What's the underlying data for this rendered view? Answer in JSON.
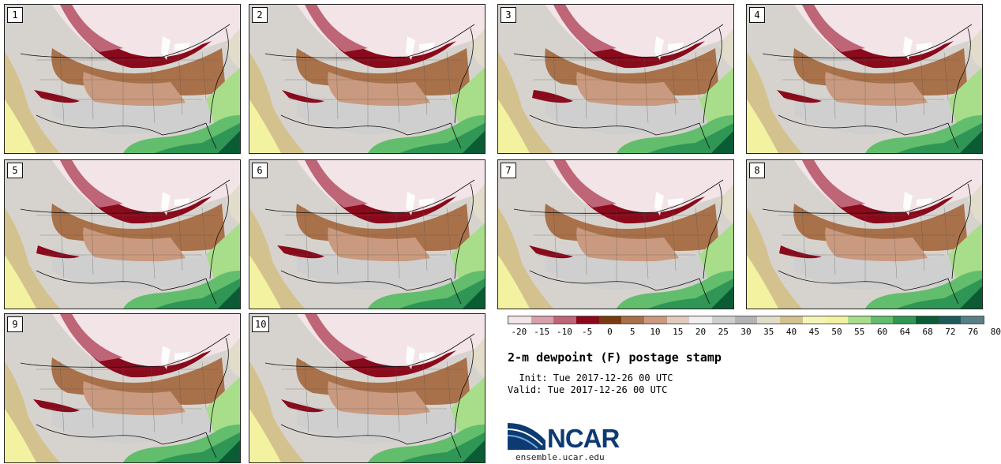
{
  "panels": [
    {
      "label": "1"
    },
    {
      "label": "2"
    },
    {
      "label": "3"
    },
    {
      "label": "4"
    },
    {
      "label": "5"
    },
    {
      "label": "6"
    },
    {
      "label": "7"
    },
    {
      "label": "8"
    },
    {
      "label": "9"
    },
    {
      "label": "10"
    }
  ],
  "colorbar": {
    "colors": [
      "#f2e4e7",
      "#d7a0ab",
      "#be6577",
      "#8a0a1c",
      "#7a3a10",
      "#a8714a",
      "#c99a7f",
      "#e1cbbf",
      "#efefef",
      "#cfcfcf",
      "#b4b4b4",
      "#e2dcca",
      "#d4c28e",
      "#f5f5b8",
      "#f2f2a0",
      "#a8dd8a",
      "#62bd6c",
      "#2f9655",
      "#0b5c34",
      "#1f5a5a",
      "#577f86"
    ],
    "ticks": [
      "-20",
      "-15",
      "-10",
      "-5",
      "0",
      "5",
      "10",
      "15",
      "20",
      "25",
      "30",
      "35",
      "40",
      "45",
      "50",
      "55",
      "60",
      "64",
      "68",
      "72",
      "76",
      "80"
    ]
  },
  "title": "2-m dewpoint (F) postage stamp",
  "init_line": "  Init: Tue 2017-12-26 00 UTC",
  "valid_line": "Valid: Tue 2017-12-26 00 UTC",
  "logo": {
    "word": "NCAR",
    "url": "ensemble.ucar.edu",
    "color": "#0d3a72"
  }
}
